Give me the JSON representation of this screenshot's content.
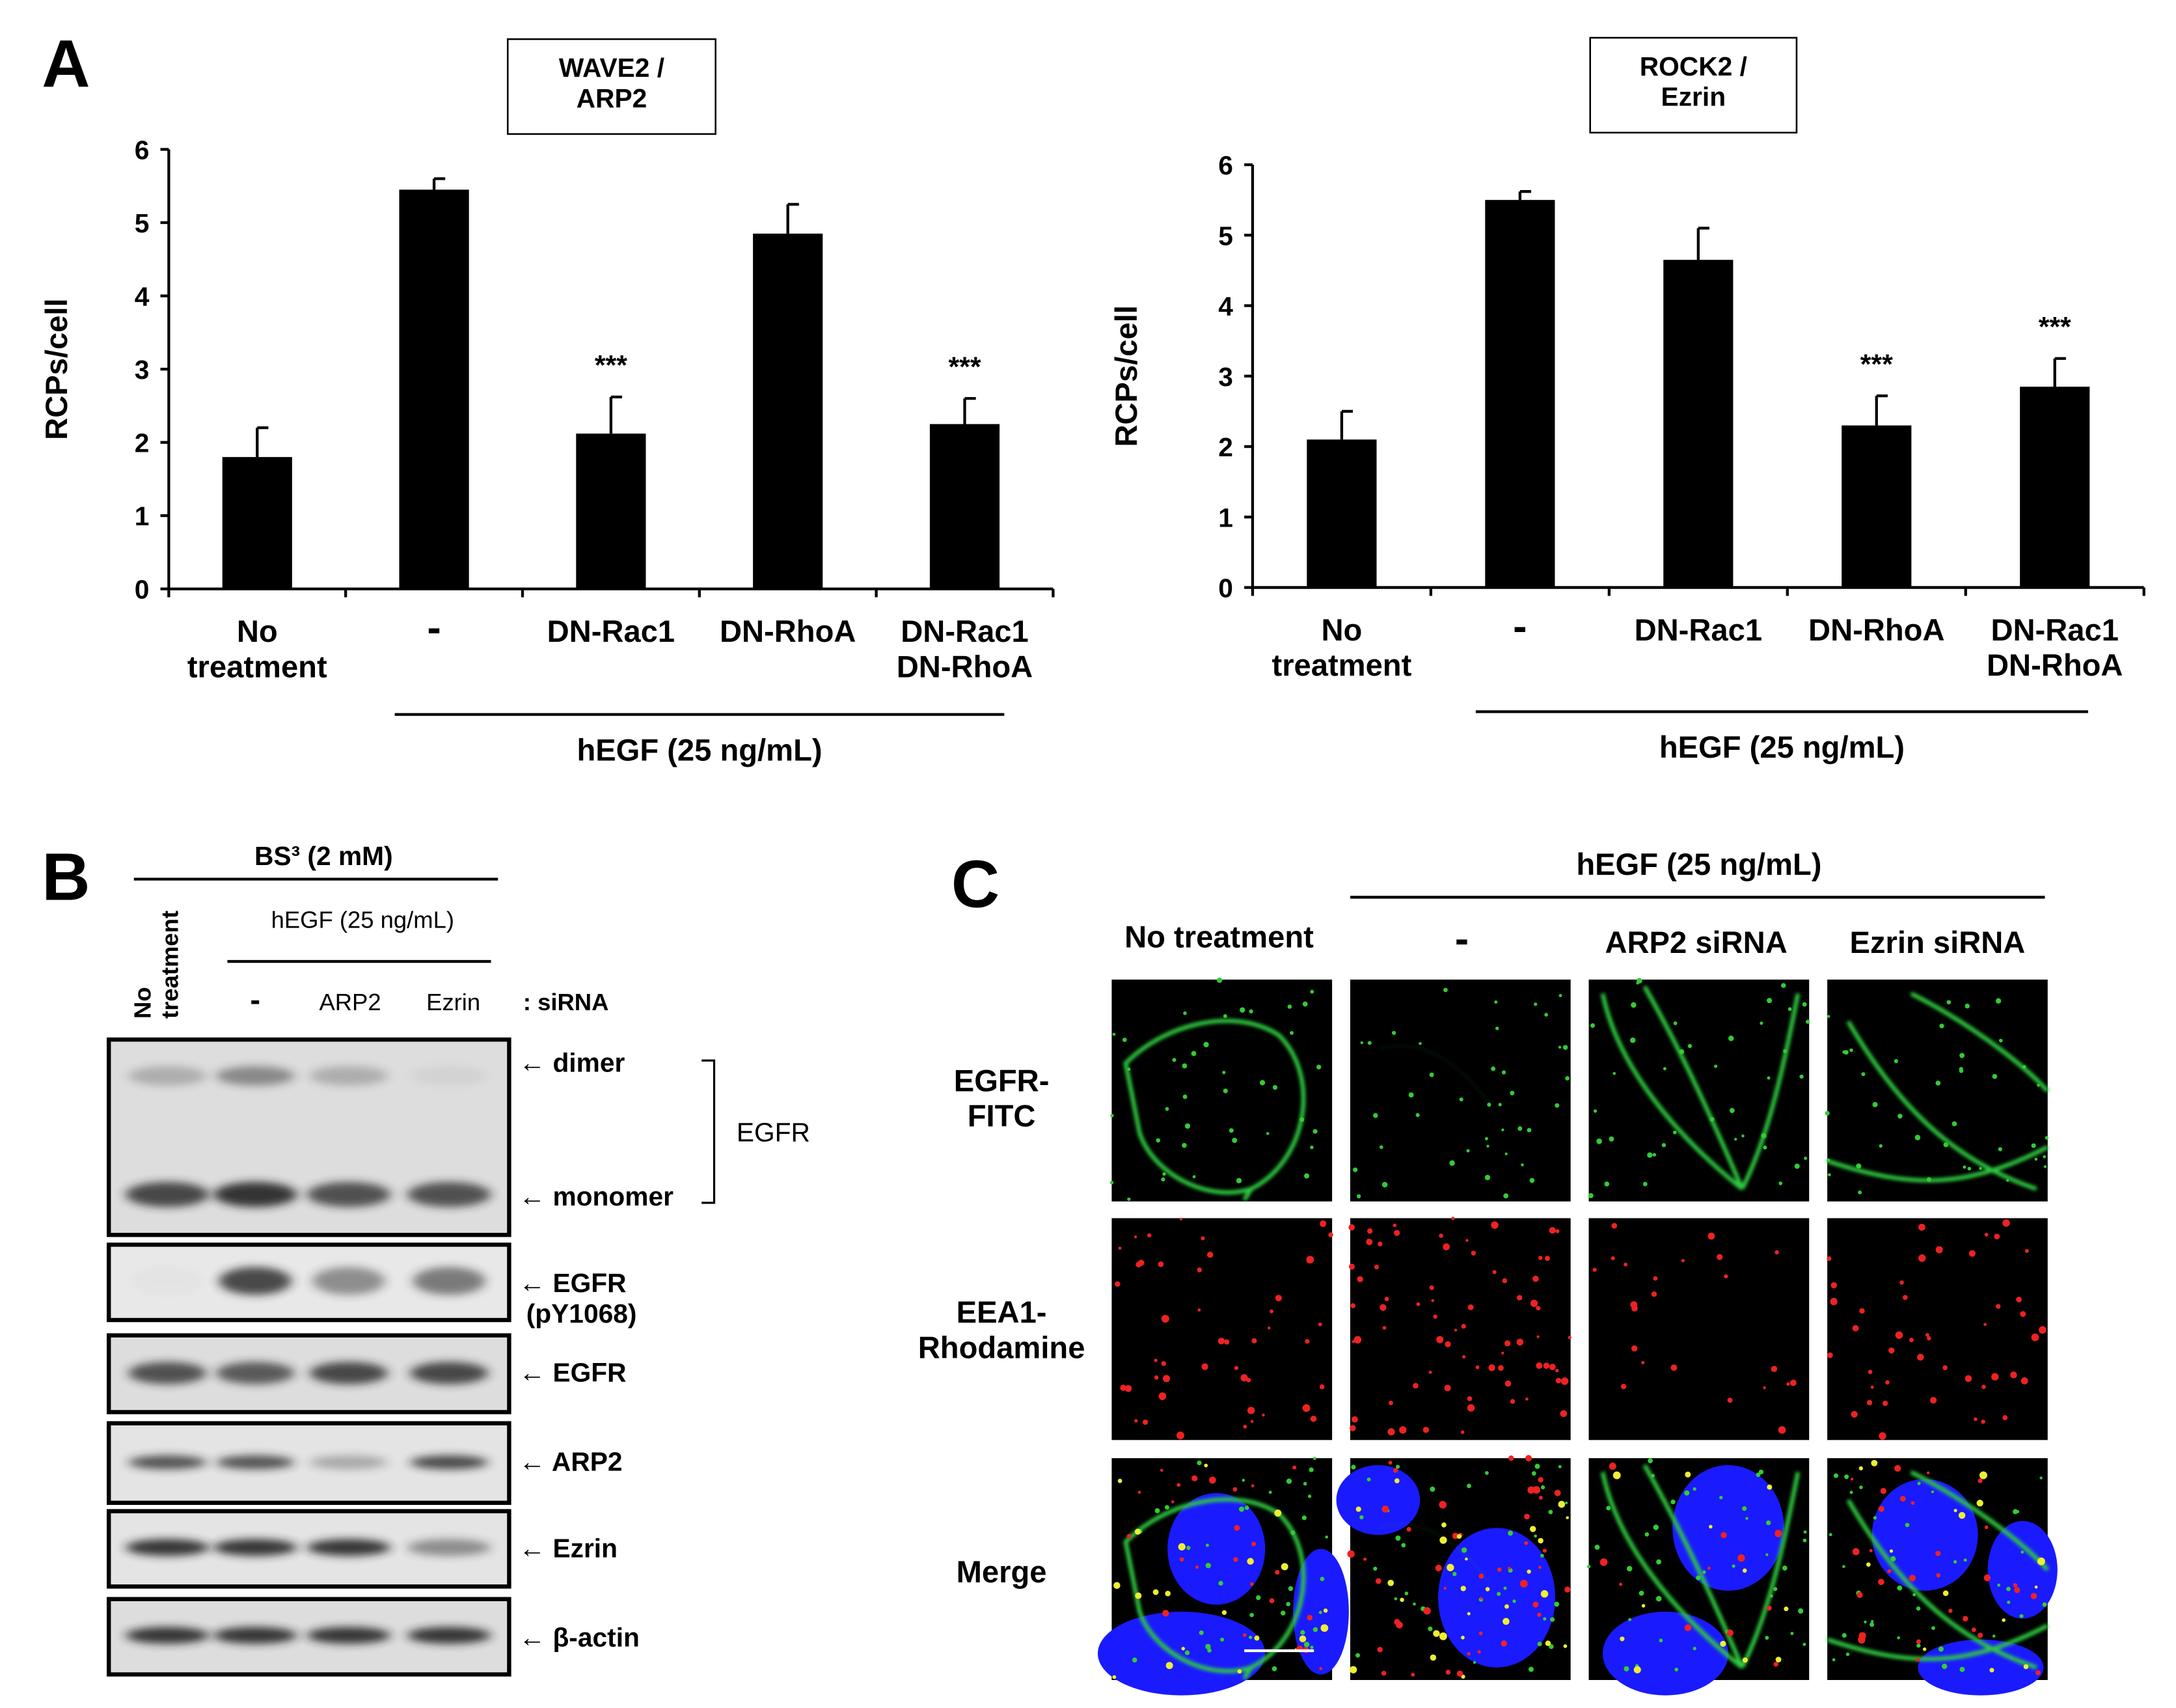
{
  "chart_data": [
    {
      "type": "bar",
      "title": "WAVE2 /\nARP2",
      "ylabel": "RCPs/cell",
      "categories": [
        "No\ntreatment",
        "-",
        "DN-Rac1",
        "DN-RhoA",
        "DN-Rac1\nDN-RhoA"
      ],
      "values": [
        1.8,
        5.45,
        2.12,
        4.85,
        2.25
      ],
      "errors": [
        0.4,
        0.15,
        0.5,
        0.4,
        0.35
      ],
      "significance": [
        null,
        null,
        "***",
        null,
        "***"
      ],
      "group_label": "hEGF (25 ng/mL)",
      "color": "#000000",
      "ylim": [
        0,
        6
      ],
      "yticks": [
        0,
        1,
        2,
        3,
        4,
        5,
        6
      ]
    },
    {
      "type": "bar",
      "title": "ROCK2 /\nEzrin",
      "ylabel": "RCPs/cell",
      "categories": [
        "No\ntreatment",
        "-",
        "DN-Rac1",
        "DN-RhoA",
        "DN-Rac1\nDN-RhoA"
      ],
      "values": [
        2.1,
        5.5,
        4.65,
        2.3,
        2.85
      ],
      "errors": [
        0.4,
        0.12,
        0.45,
        0.42,
        0.4
      ],
      "significance": [
        null,
        null,
        null,
        "***",
        "***"
      ],
      "group_label": "hEGF (25 ng/mL)",
      "color": "#000000",
      "ylim": [
        0,
        6
      ],
      "yticks": [
        0,
        1,
        2,
        3,
        4,
        5,
        6
      ]
    }
  ],
  "panel_labels": [
    "A",
    "B",
    "C"
  ],
  "panel_b": {
    "crosslinker": "BS³ (2 mM)",
    "no_treatment": "No\ntreatment",
    "treatment": "hEGF  (25 ng/mL)",
    "lanes": [
      "-",
      "ARP2",
      "Ezrin"
    ],
    "lane_type": ": siRNA",
    "bracket_label": "EGFR",
    "band_labels": [
      "← dimer",
      "← monomer",
      "← EGFR\n  (pY1068)",
      "← EGFR",
      "← ARP2",
      "← Ezrin",
      "← β-actin"
    ]
  },
  "panel_c": {
    "treatment": "hEGF (25 ng/mL)",
    "columns": [
      "No treatment",
      "-",
      "ARP2 siRNA",
      "Ezrin siRNA"
    ],
    "rows": [
      "EGFR-\nFITC",
      "EEA1-\nRhodamine",
      "Merge"
    ]
  }
}
